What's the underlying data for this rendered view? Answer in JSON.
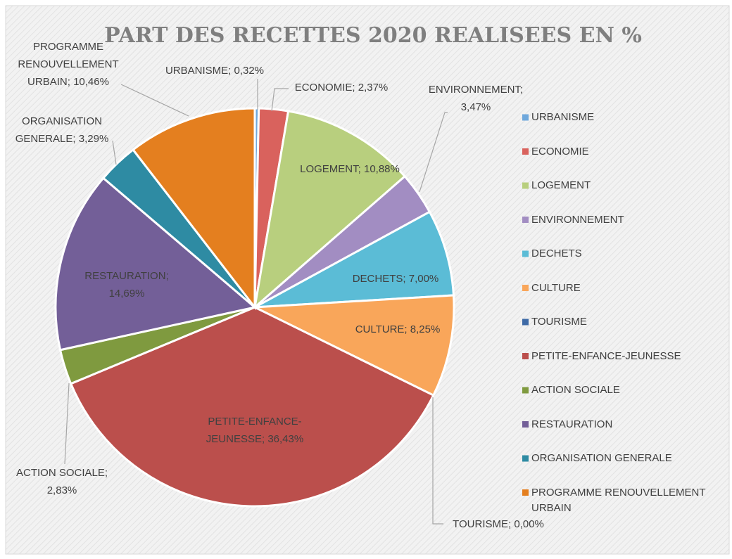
{
  "chart_data": {
    "type": "pie",
    "title": "PART DES RECETTES 2020 REALISEES EN %",
    "categories": [
      "URBANISME",
      "ECONOMIE",
      "LOGEMENT",
      "ENVIRONNEMENT",
      "DECHETS",
      "CULTURE",
      "TOURISME",
      "PETITE-ENFANCE-JEUNESSE",
      "ACTION SOCIALE",
      "RESTAURATION",
      "ORGANISATION GENERALE",
      "PROGRAMME RENOUVELLEMENT URBAIN"
    ],
    "values": [
      0.32,
      2.37,
      10.88,
      3.47,
      7.0,
      8.25,
      0.0,
      36.43,
      2.83,
      14.69,
      3.29,
      10.46
    ],
    "value_labels": [
      "0,32%",
      "2,37%",
      "10,88%",
      "3,47%",
      "7,00%",
      "8,25%",
      "0,00%",
      "36,43%",
      "2,83%",
      "14,69%",
      "3,29%",
      "10,46%"
    ],
    "colors": [
      "#6fa8dc",
      "#d9625d",
      "#b8cf7e",
      "#a28dc2",
      "#5bbcd6",
      "#f9a65a",
      "#3e6aa6",
      "#bb4f4c",
      "#7f9a3f",
      "#735f98",
      "#2e8ba3",
      "#e47f1f"
    ],
    "legend": "right"
  }
}
